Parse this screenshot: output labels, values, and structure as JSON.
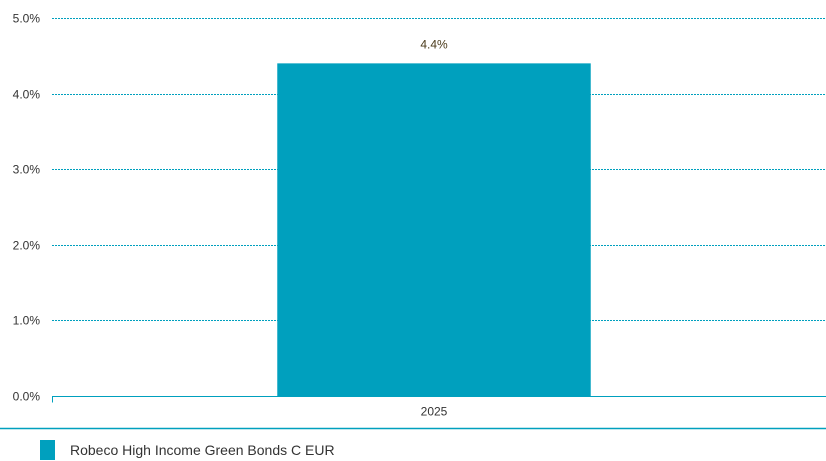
{
  "chart_data": {
    "type": "bar",
    "categories": [
      "2025"
    ],
    "series": [
      {
        "name": "Robeco High Income Green Bonds C EUR",
        "values": [
          4.4
        ],
        "data_labels": [
          "4.4%"
        ],
        "color": "#00a0be"
      }
    ],
    "ylim": [
      0,
      5
    ],
    "y_ticks": [
      {
        "value": 0,
        "label": "0.0%"
      },
      {
        "value": 1,
        "label": "1.0%"
      },
      {
        "value": 2,
        "label": "2.0%"
      },
      {
        "value": 3,
        "label": "3.0%"
      },
      {
        "value": 4,
        "label": "4.0%"
      },
      {
        "value": 5,
        "label": "5.0%"
      }
    ],
    "grid": true,
    "gridline_color": "#00a0be",
    "axis_color": "#00a0be",
    "text_color": "#333333",
    "data_label_color": "#4a3a1a",
    "legend_position": "bottom-left"
  }
}
